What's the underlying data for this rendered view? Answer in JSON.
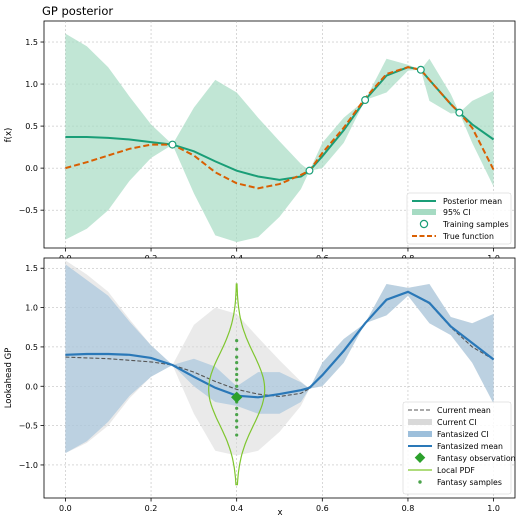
{
  "chart_data": [
    {
      "type": "line",
      "title": "GP posterior",
      "xlabel": "",
      "ylabel": "f(x)",
      "xlim": [
        -0.05,
        1.05
      ],
      "ylim": [
        -0.95,
        1.75
      ],
      "x_ticks": [
        0.0,
        0.2,
        0.4,
        0.6,
        0.8,
        1.0
      ],
      "x_tick_labels": [
        "0.0",
        "0.2",
        "0.4",
        "0.6",
        "0.8",
        "1.0"
      ],
      "y_ticks": [
        -0.5,
        0.0,
        0.5,
        1.0,
        1.5
      ],
      "y_tick_labels": [
        "−0.5",
        "0.0",
        "0.5",
        "1.0",
        "1.5"
      ],
      "grid": true,
      "legend_position": "lower-right",
      "legend": [
        "Posterior mean",
        "95% CI",
        "Training samples",
        "True function"
      ],
      "x": [
        0.0,
        0.05,
        0.1,
        0.15,
        0.2,
        0.25,
        0.3,
        0.35,
        0.4,
        0.45,
        0.5,
        0.55,
        0.57,
        0.6,
        0.65,
        0.7,
        0.75,
        0.8,
        0.83,
        0.85,
        0.9,
        0.92,
        0.95,
        1.0
      ],
      "series": [
        {
          "name": "Posterior mean",
          "color": "#1a9e77",
          "values": [
            0.37,
            0.37,
            0.36,
            0.34,
            0.31,
            0.28,
            0.2,
            0.08,
            -0.03,
            -0.1,
            -0.14,
            -0.1,
            -0.03,
            0.14,
            0.45,
            0.81,
            1.1,
            1.2,
            1.17,
            1.05,
            0.76,
            0.66,
            0.52,
            0.34
          ]
        },
        {
          "name": "True function",
          "color": "#d95f02",
          "values": [
            0.0,
            0.07,
            0.15,
            0.23,
            0.28,
            0.28,
            0.15,
            -0.05,
            -0.18,
            -0.24,
            -0.19,
            -0.08,
            -0.03,
            0.18,
            0.48,
            0.83,
            1.12,
            1.2,
            1.17,
            1.05,
            0.76,
            0.66,
            0.48,
            -0.02
          ]
        }
      ],
      "ci": {
        "name": "95% CI",
        "color": "#a6dbc3",
        "upper": [
          1.6,
          1.45,
          1.2,
          0.85,
          0.52,
          0.28,
          0.72,
          1.05,
          0.9,
          0.6,
          0.32,
          0.05,
          -0.03,
          0.3,
          0.6,
          0.81,
          1.3,
          1.23,
          1.17,
          1.3,
          0.88,
          0.66,
          0.8,
          0.92
        ],
        "lower": [
          -0.85,
          -0.72,
          -0.5,
          -0.15,
          0.12,
          0.28,
          -0.3,
          -0.8,
          -0.88,
          -0.82,
          -0.58,
          -0.25,
          -0.03,
          0.0,
          0.3,
          0.81,
          0.9,
          1.16,
          1.17,
          0.8,
          0.65,
          0.66,
          0.3,
          -0.22
        ]
      },
      "training_samples": {
        "x": [
          0.25,
          0.57,
          0.7,
          0.83,
          0.92
        ],
        "y": [
          0.28,
          -0.03,
          0.81,
          1.17,
          0.66
        ]
      }
    },
    {
      "type": "line",
      "title": "",
      "xlabel": "x",
      "ylabel": "Lookahead GP",
      "xlim": [
        -0.05,
        1.05
      ],
      "ylim": [
        -1.42,
        1.63
      ],
      "x_ticks": [
        0.0,
        0.2,
        0.4,
        0.6,
        0.8,
        1.0
      ],
      "x_tick_labels": [
        "0.0",
        "0.2",
        "0.4",
        "0.6",
        "0.8",
        "1.0"
      ],
      "y_ticks": [
        -1.0,
        -0.5,
        0.0,
        0.5,
        1.0,
        1.5
      ],
      "y_tick_labels": [
        "−1.0",
        "−0.5",
        "0.0",
        "0.5",
        "1.0",
        "1.5"
      ],
      "grid": true,
      "legend_position": "lower-right",
      "legend": [
        "Current mean",
        "Current CI",
        "Fantasized CI",
        "Fantasized mean",
        "Fantasy observation",
        "Local PDF",
        "Fantasy samples"
      ],
      "x": [
        0.0,
        0.05,
        0.1,
        0.15,
        0.2,
        0.25,
        0.3,
        0.35,
        0.4,
        0.45,
        0.5,
        0.55,
        0.57,
        0.6,
        0.65,
        0.7,
        0.75,
        0.8,
        0.85,
        0.9,
        0.95,
        1.0
      ],
      "series": [
        {
          "name": "Current mean",
          "color": "#555555",
          "dashed": true,
          "values": [
            0.37,
            0.36,
            0.35,
            0.33,
            0.31,
            0.27,
            0.18,
            0.06,
            -0.04,
            -0.1,
            -0.13,
            -0.09,
            -0.03,
            0.14,
            0.45,
            0.8,
            1.1,
            1.2,
            1.05,
            0.75,
            0.5,
            0.34
          ]
        },
        {
          "name": "Fantasized mean",
          "color": "#2a78b8",
          "values": [
            0.4,
            0.41,
            0.41,
            0.4,
            0.36,
            0.27,
            0.12,
            -0.02,
            -0.12,
            -0.14,
            -0.1,
            -0.05,
            -0.02,
            0.14,
            0.45,
            0.8,
            1.1,
            1.2,
            1.06,
            0.76,
            0.55,
            0.34
          ]
        }
      ],
      "current_ci": {
        "name": "Current CI",
        "color": "#d9d9d9",
        "upper": [
          1.6,
          1.42,
          1.2,
          0.85,
          0.52,
          0.27,
          0.78,
          1.0,
          0.92,
          0.62,
          0.33,
          0.06,
          -0.03,
          0.3,
          0.6,
          0.8,
          1.3,
          1.25,
          1.3,
          0.88,
          0.8,
          0.92
        ],
        "lower": [
          -0.85,
          -0.72,
          -0.5,
          -0.15,
          0.12,
          0.27,
          -0.35,
          -0.82,
          -0.88,
          -0.82,
          -0.58,
          -0.25,
          -0.03,
          0.0,
          0.3,
          0.8,
          0.9,
          1.15,
          0.8,
          0.65,
          0.3,
          -0.22
        ]
      },
      "fantasized_ci": {
        "name": "Fantasized CI",
        "color": "#9dbfdb",
        "upper": [
          1.55,
          1.35,
          1.15,
          0.82,
          0.52,
          0.27,
          0.35,
          0.25,
          0.0,
          0.18,
          0.18,
          0.05,
          -0.03,
          0.3,
          0.6,
          0.8,
          1.3,
          1.25,
          1.3,
          0.88,
          0.8,
          0.92
        ],
        "lower": [
          -0.85,
          -0.7,
          -0.45,
          -0.12,
          0.12,
          0.27,
          0.0,
          -0.2,
          -0.25,
          -0.35,
          -0.35,
          -0.2,
          -0.03,
          0.0,
          0.3,
          0.8,
          0.9,
          1.15,
          0.8,
          0.65,
          0.3,
          -0.22
        ]
      },
      "fantasy_observation": {
        "name": "Fantasy observation",
        "x": 0.4,
        "y": -0.14,
        "color": "#2ca02c"
      },
      "local_pdf": {
        "name": "Local PDF",
        "x": 0.4,
        "ymin": -1.25,
        "ymax": 1.3,
        "mean": -0.04,
        "sd": 0.45,
        "color": "#7fc62f"
      },
      "fantasy_samples": {
        "name": "Fantasy samples",
        "x": 0.4,
        "y": [
          0.58,
          0.47,
          0.37,
          0.3,
          0.22,
          0.15,
          0.08,
          0.0,
          -0.1,
          -0.2,
          -0.28,
          -0.36,
          -0.44,
          -0.52,
          -0.62
        ],
        "color": "#4aa34a"
      }
    }
  ]
}
